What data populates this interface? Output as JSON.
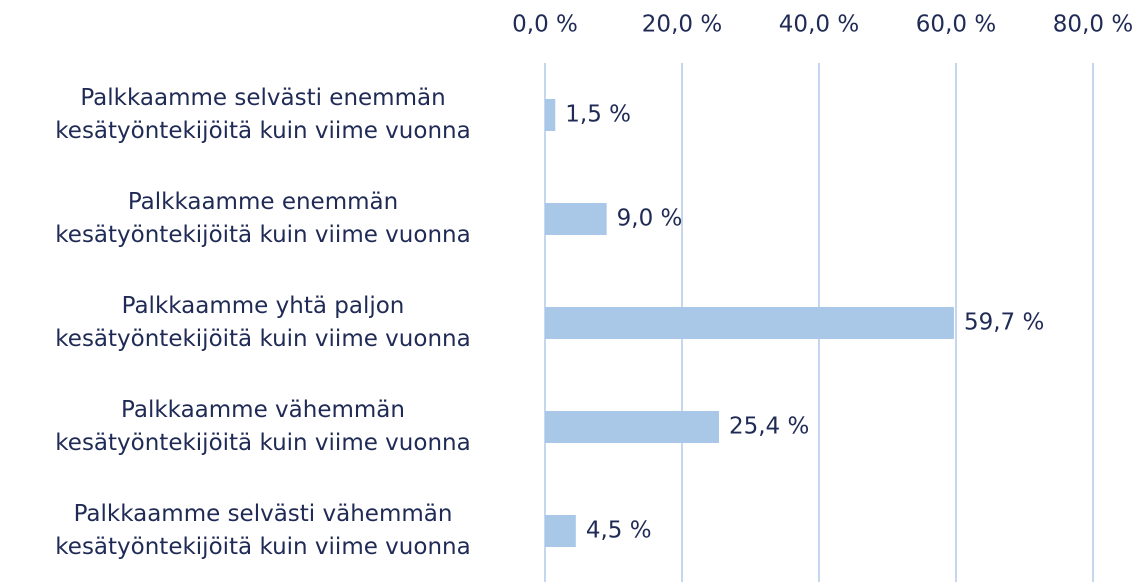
{
  "chart_data": {
    "type": "bar",
    "orientation": "horizontal",
    "categories": [
      "Palkkaamme selvästi enemmän\nkesätyöntekijöitä kuin viime vuonna",
      "Palkkaamme enemmän\nkesätyöntekijöitä kuin viime vuonna",
      "Palkkaamme yhtä paljon\nkesätyöntekijöitä kuin viime vuonna",
      "Palkkaamme vähemmän\nkesätyöntekijöitä kuin viime vuonna",
      "Palkkaamme selvästi vähemmän\nkesätyöntekijöitä kuin viime vuonna"
    ],
    "values": [
      1.5,
      9.0,
      59.7,
      25.4,
      4.5
    ],
    "value_labels": [
      "1,5 %",
      "9,0 %",
      "59,7 %",
      "25,4 %",
      "4,5 %"
    ],
    "color": "#a9c8e8",
    "xlim": [
      0,
      80
    ],
    "xticks": [
      {
        "value": 0,
        "label": "0,0 %"
      },
      {
        "value": 20,
        "label": "20,0 %"
      },
      {
        "value": 40,
        "label": "40,0 %"
      },
      {
        "value": 60,
        "label": "60,0 %"
      },
      {
        "value": 80,
        "label": "80,0 %"
      }
    ],
    "grid": true
  }
}
